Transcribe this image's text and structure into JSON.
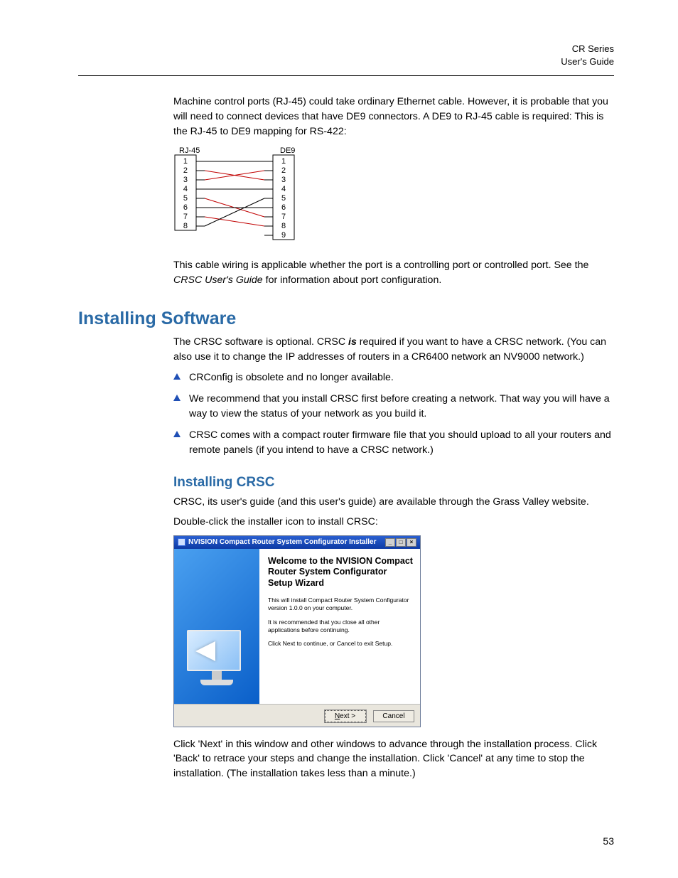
{
  "header": {
    "line1": "CR Series",
    "line2": "User's Guide"
  },
  "intro_para": "Machine control ports (RJ-45) could take ordinary Ethernet cable. However, it is probable that you will need to connect devices that have DE9 connectors. A DE9 to RJ-45 cable is required: This is the RJ-45 to DE9 mapping for RS-422:",
  "pin_diagram": {
    "left_label": "RJ-45",
    "right_label": "DE9",
    "left_pins": [
      1,
      2,
      3,
      4,
      5,
      6,
      7,
      8
    ],
    "right_pins": [
      1,
      2,
      3,
      4,
      5,
      6,
      7,
      8,
      9
    ],
    "connections": [
      {
        "from": 1,
        "to": 1,
        "color": "#000000"
      },
      {
        "from": 2,
        "to": 3,
        "color": "#c00000"
      },
      {
        "from": 3,
        "to": 2,
        "color": "#c00000"
      },
      {
        "from": 4,
        "to": 4,
        "color": "#000000"
      },
      {
        "from": 5,
        "to": 7,
        "color": "#c00000"
      },
      {
        "from": 6,
        "to": 6,
        "color": "#000000"
      },
      {
        "from": 7,
        "to": 8,
        "color": "#c00000"
      },
      {
        "from": 8,
        "to": 5,
        "color": "#000000"
      }
    ]
  },
  "after_diagram_para_pre": "This cable wiring is applicable whether the port is a controlling port or controlled port. See the ",
  "after_diagram_emph": "CRSC User's Guide",
  "after_diagram_para_post": " for information about port configuration.",
  "h1": "Installing Software",
  "install_para_pre": "The CRSC software is optional. CRSC ",
  "install_para_bold": "is",
  "install_para_post": " required if you want to have a CRSC network. (You can also use it to change the IP addresses of routers in a CR6400 network an NV9000 network.)",
  "bullets": [
    "CRConfig is obsolete and no longer available.",
    "We recommend that you install CRSC first before creating a network. That way you will have a way to view the status of your network as you build it.",
    "CRSC comes with a compact router firmware file that you should upload to all your routers and remote panels (if you intend to have a CRSC network.)"
  ],
  "h2": "Installing CRSC",
  "crsc_para1": "CRSC, its user's guide (and this user's guide) are available through the Grass Valley website.",
  "crsc_para2": "Double-click the installer icon to install CRSC:",
  "installer": {
    "title": "NVISION Compact Router System Configurator Installer",
    "heading": "Welcome to the NVISION Compact Router System Configurator Setup Wizard",
    "line1": "This will install Compact Router System Configurator version 1.0.0 on your computer.",
    "line2": "It is recommended that you close all other applications before continuing.",
    "line3": "Click Next to continue, or Cancel to exit Setup.",
    "next_label": "Next >",
    "cancel_label": "Cancel"
  },
  "closing_para": "Click 'Next' in this window and other windows to advance through the installation process. Click 'Back' to retrace your steps and change the installation. Click 'Cancel' at any time to stop the installation. (The installation takes less than a minute.)",
  "page_number": "53",
  "colors": {
    "heading": "#2a6aa6",
    "bullet_triangle": "#1f4fb5",
    "wire_red": "#c00000",
    "wire_black": "#000000",
    "titlebar_top": "#2a5fd0",
    "titlebar_bottom": "#0d3aa5",
    "sidebar_top": "#4aa0f0",
    "sidebar_bottom": "#0a5fc9"
  }
}
